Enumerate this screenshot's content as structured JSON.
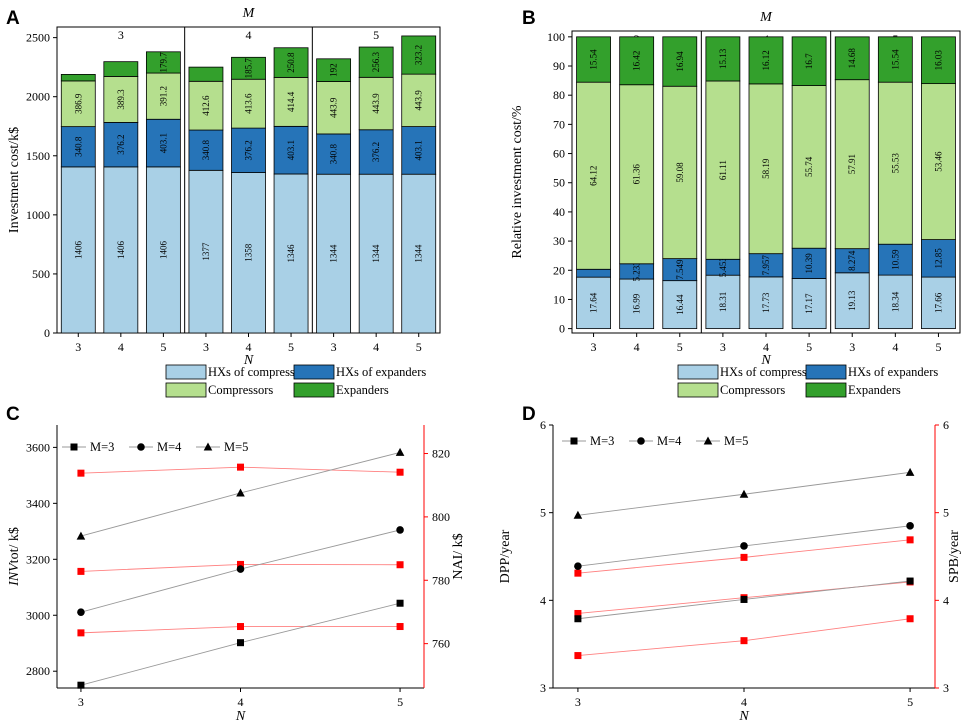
{
  "colors": {
    "hx_comp": "#a9d0e6",
    "hx_exp": "#2674b8",
    "comp": "#b5df8e",
    "exp": "#33a02c",
    "black": "#000000",
    "red": "#ff0000",
    "gray_line": "#999999",
    "red_line": "#ff8080"
  },
  "chart_data": [
    {
      "id": "A",
      "panel_label": "A",
      "type": "bar",
      "stacked": true,
      "ylabel": "Investment cost/k$",
      "xlabel": "N",
      "top_label": "M",
      "groups": [
        "3",
        "4",
        "5"
      ],
      "categories": [
        "3",
        "4",
        "5",
        "3",
        "4",
        "5",
        "3",
        "4",
        "5"
      ],
      "ylim": [
        0,
        2700
      ],
      "yticks": [
        "0",
        "500",
        "1000",
        "1500",
        "2000",
        "2500"
      ],
      "series": [
        {
          "name": "HXs of compressors",
          "color_key": "hx_comp",
          "values": [
            1406,
            1406,
            1406,
            1377,
            1358,
            1346,
            1344,
            1344,
            1344
          ],
          "labels": [
            "1406",
            "1406",
            "1406",
            "1377",
            "1358",
            "1346",
            "1344",
            "1344",
            "1344"
          ]
        },
        {
          "name": "HXs of expanders",
          "color_key": "hx_exp",
          "values": [
            340.8,
            376.2,
            403.1,
            340.8,
            376.2,
            403.1,
            340.8,
            376.2,
            403.1
          ],
          "labels": [
            "340.8",
            "376.2",
            "403.1",
            "340.8",
            "376.2",
            "403.1",
            "340.8",
            "376.2",
            "403.1"
          ]
        },
        {
          "name": "Compressors",
          "color_key": "comp",
          "values": [
            386.9,
            389.3,
            391.2,
            412.6,
            413.6,
            414.4,
            443.9,
            443.9,
            443.9
          ],
          "labels": [
            "386.9",
            "389.3",
            "391.2",
            "412.6",
            "413.6",
            "414.4",
            "443.9",
            "443.9",
            "443.9"
          ]
        },
        {
          "name": "Expanders",
          "color_key": "exp",
          "values": [
            55,
            125,
            179.7,
            120,
            185.7,
            250.8,
            192,
            256.3,
            323.2
          ],
          "labels": [
            "",
            "",
            "179.7",
            "",
            "185.7",
            "250.8",
            "192",
            "256.3",
            "323.2"
          ]
        }
      ],
      "legend": [
        "HXs of compressors",
        "HXs of expanders",
        "Compressors",
        "Expanders"
      ]
    },
    {
      "id": "B",
      "panel_label": "B",
      "type": "bar",
      "stacked": true,
      "ylabel": "Relative investment cost/%",
      "xlabel": "N",
      "top_label": "M",
      "groups": [
        "3",
        "4",
        "5"
      ],
      "categories": [
        "3",
        "4",
        "5",
        "3",
        "4",
        "5",
        "3",
        "4",
        "5"
      ],
      "ylim": [
        -1.5,
        102
      ],
      "yticks": [
        "0",
        "10",
        "20",
        "30",
        "40",
        "50",
        "60",
        "70",
        "80",
        "90",
        "100"
      ],
      "series": [
        {
          "name": "HXs of compressors",
          "color_key": "hx_comp",
          "values": [
            17.64,
            16.99,
            16.44,
            18.31,
            17.73,
            17.17,
            19.13,
            18.34,
            17.66
          ],
          "labels": [
            "17.64",
            "16.99",
            "16.44",
            "18.31",
            "17.73",
            "17.17",
            "19.13",
            "18.34",
            "17.66"
          ]
        },
        {
          "name": "HXs of expanders",
          "color_key": "hx_exp",
          "values": [
            2.7,
            5.233,
            7.549,
            5.453,
            7.957,
            10.39,
            8.274,
            10.59,
            12.85
          ],
          "labels": [
            "",
            "5.233",
            "7.549",
            "5.453",
            "7.957",
            "10.39",
            "8.274",
            "10.59",
            "12.85"
          ]
        },
        {
          "name": "Compressors",
          "color_key": "comp",
          "values": [
            64.12,
            61.36,
            59.08,
            61.11,
            58.19,
            55.74,
            57.91,
            55.53,
            53.46
          ],
          "labels": [
            "64.12",
            "61.36",
            "59.08",
            "61.11",
            "58.19",
            "55.74",
            "57.91",
            "55.53",
            "53.46"
          ]
        },
        {
          "name": "Expanders",
          "color_key": "exp",
          "values": [
            15.54,
            16.42,
            16.94,
            15.13,
            16.12,
            16.7,
            14.68,
            15.54,
            16.03
          ],
          "labels": [
            "15.54",
            "16.42",
            "16.94",
            "15.13",
            "16.12",
            "16.7",
            "14.68",
            "15.54",
            "16.03"
          ]
        }
      ],
      "legend": [
        "HXs of compressors",
        "HXs of expanders",
        "Compressors",
        "Expanders"
      ]
    },
    {
      "id": "C",
      "panel_label": "C",
      "type": "line",
      "xlabel": "N",
      "ylabel_left": "INVtot/ k$",
      "ylabel_left_italic": "INV",
      "ylabel_left_rest": "tot/ k$",
      "ylabel_right": "NAI/ k$",
      "x": [
        3,
        4,
        5
      ],
      "xlim": [
        2.85,
        5.15
      ],
      "xticks": [
        "3",
        "4",
        "5"
      ],
      "ylim_left": [
        2740,
        3680
      ],
      "yticks_left": [
        "2800",
        "3000",
        "3200",
        "3400",
        "3600"
      ],
      "ylim_right": [
        746,
        829
      ],
      "yticks_right": [
        "760",
        "780",
        "800",
        "820"
      ],
      "series_left": [
        {
          "name": "M=3",
          "marker": "square",
          "values": [
            2750,
            2902,
            3043
          ]
        },
        {
          "name": "M=4",
          "marker": "circle",
          "values": [
            3011,
            3165,
            3305
          ]
        },
        {
          "name": "M=5",
          "marker": "triangle",
          "values": [
            3283,
            3437,
            3582
          ]
        }
      ],
      "series_right": [
        {
          "name": "M=3 NAI",
          "marker": "square",
          "values": [
            763.4,
            765.4,
            765.4
          ]
        },
        {
          "name": "M=4 NAI",
          "marker": "square",
          "values": [
            782.8,
            785.0,
            784.9
          ]
        },
        {
          "name": "M=5 NAI",
          "marker": "square",
          "values": [
            813.8,
            815.7,
            814.1
          ]
        }
      ],
      "legend": [
        "M=3",
        "M=4",
        "M=5"
      ]
    },
    {
      "id": "D",
      "panel_label": "D",
      "type": "line",
      "xlabel": "N",
      "ylabel_left": "DPP/year",
      "ylabel_right": "SPB/year",
      "x": [
        3,
        4,
        5
      ],
      "xlim": [
        2.85,
        5.15
      ],
      "xticks": [
        "3",
        "4",
        "5"
      ],
      "ylim_left": [
        3,
        6
      ],
      "yticks_left": [
        "3",
        "4",
        "5",
        "6"
      ],
      "ylim_right": [
        3,
        6
      ],
      "yticks_right": [
        "3",
        "4",
        "5",
        "6"
      ],
      "series_left": [
        {
          "name": "M=3",
          "marker": "square",
          "values": [
            3.79,
            4.01,
            4.22
          ]
        },
        {
          "name": "M=4",
          "marker": "circle",
          "values": [
            4.39,
            4.62,
            4.85
          ]
        },
        {
          "name": "M=5",
          "marker": "triangle",
          "values": [
            4.97,
            5.21,
            5.46
          ]
        }
      ],
      "series_right": [
        {
          "name": "M=3 SPB",
          "marker": "square",
          "values": [
            3.37,
            3.54,
            3.79
          ]
        },
        {
          "name": "M=4 SPB",
          "marker": "square",
          "values": [
            3.85,
            4.03,
            4.21
          ]
        },
        {
          "name": "M=5 SPB",
          "marker": "square",
          "values": [
            4.31,
            4.49,
            4.69
          ]
        }
      ],
      "legend": [
        "M=3",
        "M=4",
        "M=5"
      ]
    }
  ]
}
